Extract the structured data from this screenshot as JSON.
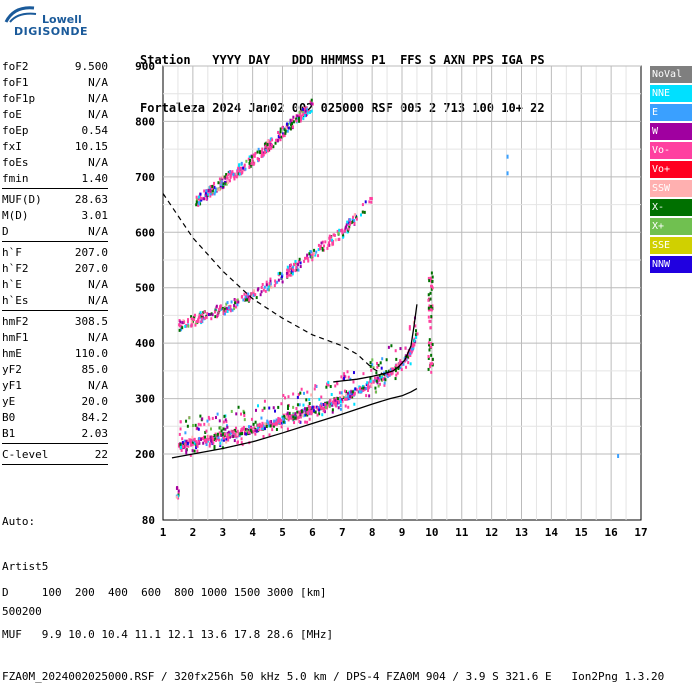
{
  "logo": {
    "line1": "Lowell",
    "line2": "DIGISONDE"
  },
  "header": {
    "line1": "Station   YYYY DAY   DDD HHMMSS P1  FFS S AXN PPS IGA PS",
    "line2": "Fortaleza 2024 Jan02 002 025000 RSF 005 2 713 100 10+ 22"
  },
  "params": [
    [
      {
        "k": "foF2",
        "v": "9.500"
      },
      {
        "k": "foF1",
        "v": "N/A"
      },
      {
        "k": "foF1p",
        "v": "N/A"
      },
      {
        "k": "foE",
        "v": "N/A"
      },
      {
        "k": "foEp",
        "v": "0.54"
      },
      {
        "k": "fxI",
        "v": "10.15"
      },
      {
        "k": "foEs",
        "v": "N/A"
      },
      {
        "k": "fmin",
        "v": "1.40"
      }
    ],
    [
      {
        "k": "MUF(D)",
        "v": "28.63"
      },
      {
        "k": "M(D)",
        "v": "3.01"
      },
      {
        "k": "D",
        "v": "N/A"
      }
    ],
    [
      {
        "k": "h`F",
        "v": "207.0"
      },
      {
        "k": "h`F2",
        "v": "207.0"
      },
      {
        "k": "h`E",
        "v": "N/A"
      },
      {
        "k": "h`Es",
        "v": "N/A"
      }
    ],
    [
      {
        "k": "hmF2",
        "v": "308.5"
      },
      {
        "k": "hmF1",
        "v": "N/A"
      },
      {
        "k": "hmE",
        "v": "110.0"
      },
      {
        "k": "yF2",
        "v": "85.0"
      },
      {
        "k": "yF1",
        "v": "N/A"
      },
      {
        "k": "yE",
        "v": "20.0"
      },
      {
        "k": "B0",
        "v": "84.2"
      },
      {
        "k": "B1",
        "v": "2.03"
      }
    ],
    [
      {
        "k": "C-level",
        "v": "22"
      }
    ]
  ],
  "auto": {
    "line1": "Auto:",
    "line2": "Artist5",
    "line3": "500200"
  },
  "chart_data": {
    "type": "scatter",
    "xlim": [
      1,
      17
    ],
    "ylim": [
      80,
      900
    ],
    "x_ticks": [
      "1",
      "2",
      "3",
      "4",
      "5",
      "6",
      "7",
      "8",
      "9",
      "10",
      "11",
      "12",
      "13",
      "14",
      "15",
      "16",
      "17"
    ],
    "y_ticks": [
      "80",
      "200",
      "300",
      "400",
      "500",
      "600",
      "700",
      "800",
      "900"
    ],
    "grid": true,
    "legend_position": "right",
    "legend": [
      {
        "name": "NoVal",
        "color": "#7f7f7f"
      },
      {
        "name": "NNE",
        "color": "#00e0ff"
      },
      {
        "name": "E",
        "color": "#3aa0ff"
      },
      {
        "name": "W",
        "color": "#a000a0"
      },
      {
        "name": "Vo-",
        "color": "#ff40a0"
      },
      {
        "name": "Vo+",
        "color": "#ff0020"
      },
      {
        "name": "SSW",
        "color": "#ffb0b0"
      },
      {
        "name": "X-",
        "color": "#007000"
      },
      {
        "name": "X+",
        "color": "#70c050"
      },
      {
        "name": "SSE",
        "color": "#d0d000"
      },
      {
        "name": "NNW",
        "color": "#2000e0"
      }
    ],
    "traces": [
      {
        "name": "F2 trace",
        "color": "#ff40a0",
        "points": [
          [
            1.5,
            215
          ],
          [
            2,
            222
          ],
          [
            3,
            232
          ],
          [
            4,
            245
          ],
          [
            5,
            262
          ],
          [
            6,
            280
          ],
          [
            7,
            300
          ],
          [
            7.5,
            315
          ],
          [
            8,
            330
          ],
          [
            8.5,
            345
          ],
          [
            9,
            365
          ],
          [
            9.3,
            390
          ],
          [
            9.5,
            420
          ]
        ]
      },
      {
        "name": "F2 second hop",
        "color": "#ff40a0",
        "points": [
          [
            1.5,
            430
          ],
          [
            2,
            440
          ],
          [
            3,
            460
          ],
          [
            4,
            485
          ],
          [
            5,
            520
          ],
          [
            6,
            560
          ],
          [
            7,
            600
          ],
          [
            7.5,
            630
          ],
          [
            8,
            660
          ]
        ]
      },
      {
        "name": "F2 third hop",
        "color": "#ff40a0",
        "points": [
          [
            2,
            650
          ],
          [
            3,
            690
          ],
          [
            4,
            730
          ],
          [
            5,
            780
          ],
          [
            6,
            830
          ]
        ]
      },
      {
        "name": "E trace",
        "color": "#2000e0",
        "points": [
          [
            1.4,
            130
          ],
          [
            1.5,
            125
          ]
        ]
      }
    ],
    "profile_solid": [
      [
        1.3,
        193
      ],
      [
        2,
        200
      ],
      [
        3,
        210
      ],
      [
        4,
        222
      ],
      [
        5,
        238
      ],
      [
        6,
        255
      ],
      [
        7,
        272
      ],
      [
        8,
        290
      ],
      [
        8.6,
        300
      ],
      [
        9,
        305
      ],
      [
        9.3,
        312
      ],
      [
        9.5,
        318
      ]
    ],
    "profile_dashed": [
      [
        1.0,
        670
      ],
      [
        2,
        590
      ],
      [
        3,
        530
      ],
      [
        4,
        480
      ],
      [
        5,
        445
      ],
      [
        6,
        415
      ],
      [
        7,
        395
      ],
      [
        7.5,
        380
      ],
      [
        8,
        355
      ],
      [
        8.5,
        340
      ]
    ],
    "profile_upper": [
      [
        6.7,
        330
      ],
      [
        7,
        332
      ],
      [
        7.5,
        335
      ],
      [
        8,
        340
      ],
      [
        8.4,
        345
      ],
      [
        8.7,
        350
      ],
      [
        8.9,
        358
      ],
      [
        9.1,
        370
      ],
      [
        9.3,
        395
      ],
      [
        9.4,
        430
      ],
      [
        9.5,
        470
      ]
    ]
  },
  "footer": {
    "line1": "D     100  200  400  600  800 1000 1500 3000 [km]",
    "line2": "MUF   9.9 10.0 10.4 11.1 12.1 13.6 17.8 28.6 [MHz]",
    "line3": "FZA0M_2024002025000.RSF / 320fx256h 50 kHz 5.0 km / DPS-4 FZA0M 904 / 3.9 S 321.6 E   Ion2Png 1.3.20"
  }
}
